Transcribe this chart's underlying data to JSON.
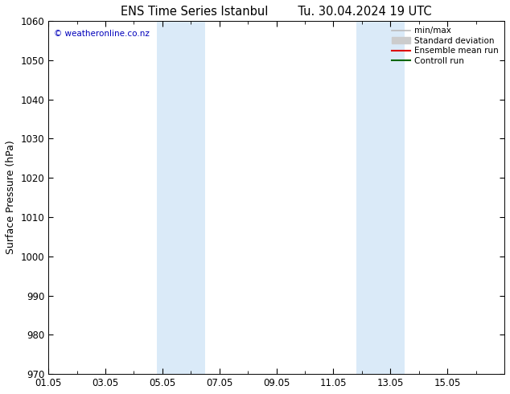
{
  "title_left": "ENS Time Series Istanbul",
  "title_right": "Tu. 30.04.2024 19 UTC",
  "ylabel": "Surface Pressure (hPa)",
  "ylim": [
    970,
    1060
  ],
  "yticks": [
    970,
    980,
    990,
    1000,
    1010,
    1020,
    1030,
    1040,
    1050,
    1060
  ],
  "xlim_start": 0,
  "xlim_end": 16,
  "xtick_labels": [
    "01.05",
    "03.05",
    "05.05",
    "07.05",
    "09.05",
    "11.05",
    "13.05",
    "15.05"
  ],
  "xtick_positions": [
    0,
    2,
    4,
    6,
    8,
    10,
    12,
    14
  ],
  "shaded_bands": [
    {
      "x_start": 3.8,
      "x_end": 5.5
    },
    {
      "x_start": 10.8,
      "x_end": 12.5
    }
  ],
  "shade_color": "#daeaf8",
  "watermark": "© weatheronline.co.nz",
  "watermark_color": "#0000bb",
  "legend_items": [
    {
      "label": "min/max",
      "color": "#bbbbbb",
      "lw": 1.2,
      "ls": "-",
      "type": "line"
    },
    {
      "label": "Standard deviation",
      "color": "#cccccc",
      "lw": 8,
      "ls": "-",
      "type": "patch"
    },
    {
      "label": "Ensemble mean run",
      "color": "#dd0000",
      "lw": 1.5,
      "ls": "-",
      "type": "line"
    },
    {
      "label": "Controll run",
      "color": "#006600",
      "lw": 1.5,
      "ls": "-",
      "type": "line"
    }
  ],
  "bg_color": "#ffffff",
  "plot_bg_color": "#ffffff",
  "tick_fontsize": 8.5,
  "label_fontsize": 9,
  "title_fontsize": 10.5
}
